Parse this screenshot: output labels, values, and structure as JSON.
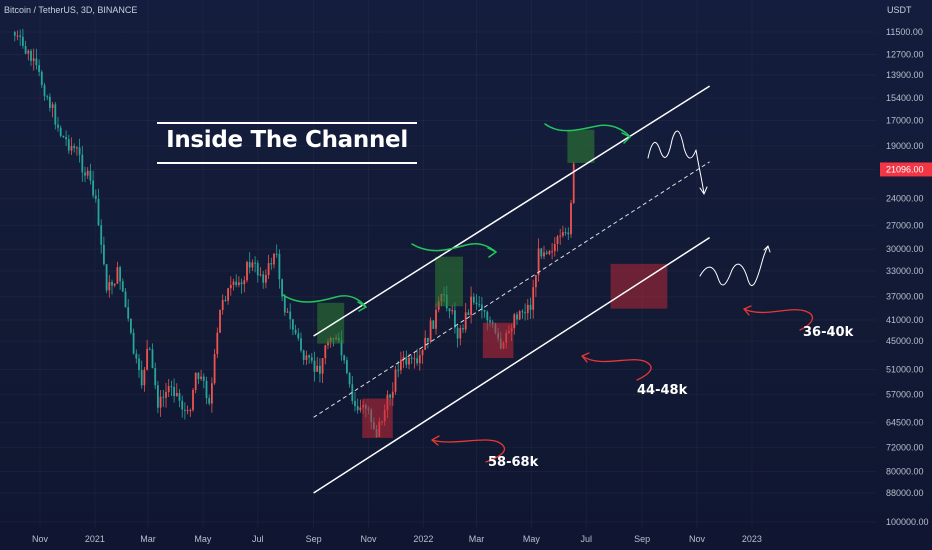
{
  "header": {
    "symbol": "Bitcoin / TetherUS, 3D, BINANCE",
    "currency": "USDT"
  },
  "overlay_title": "Inside The Channel",
  "annotations": [
    "58-68k",
    "44-48k",
    "36-40k"
  ],
  "colors": {
    "background": "#131a33",
    "candle_up": "#26a69a",
    "candle_down": "#ef5350",
    "current_price_tag": "#f23645",
    "zone_green": "#2e7d32",
    "zone_red": "#c62836",
    "arrow_green": "#22c55e",
    "arrow_red": "#e53935"
  },
  "chart_data": {
    "type": "candlestick",
    "y_scale": "log-inverted",
    "y_ticks": [
      11500,
      12700,
      13900,
      15400,
      17000,
      19000,
      21096,
      24000,
      27000,
      30000,
      33000,
      37000,
      41000,
      45000,
      51000,
      57000,
      64500,
      72000,
      80000,
      88000,
      100000
    ],
    "y_tick_labels": [
      "11500.00",
      "12700.00",
      "13900.00",
      "15400.00",
      "17000.00",
      "19000.00",
      "21096.00",
      "24000.00",
      "27000.00",
      "30000.00",
      "33000.00",
      "37000.00",
      "41000.00",
      "45000.00",
      "51000.00",
      "57000.00",
      "64500.00",
      "72000.00",
      "80000.00",
      "88000.00",
      "100000.00"
    ],
    "current_price": 21096,
    "current_price_label": "21096.00",
    "x_tick_labels": [
      "Nov",
      "2021",
      "Mar",
      "May",
      "Jul",
      "Sep",
      "Nov",
      "2022",
      "Mar",
      "May",
      "Jul",
      "Sep",
      "Nov",
      "2023"
    ],
    "x_tick_dates": [
      "2020-11-01",
      "2021-01-01",
      "2021-03-01",
      "2021-05-01",
      "2021-07-01",
      "2021-09-01",
      "2021-11-01",
      "2022-01-01",
      "2022-03-01",
      "2022-05-01",
      "2022-07-01",
      "2022-09-01",
      "2022-11-01",
      "2023-01-01"
    ],
    "price_path": [
      [
        "2020-10-01",
        11500
      ],
      [
        "2020-10-20",
        12800
      ],
      [
        "2020-11-05",
        14600
      ],
      [
        "2020-11-25",
        18200
      ],
      [
        "2020-12-12",
        19500
      ],
      [
        "2020-12-31",
        23500
      ],
      [
        "2021-01-15",
        36000
      ],
      [
        "2021-01-28",
        33000
      ],
      [
        "2021-02-10",
        44500
      ],
      [
        "2021-02-21",
        55000
      ],
      [
        "2021-03-01",
        46000
      ],
      [
        "2021-03-13",
        60000
      ],
      [
        "2021-03-27",
        54000
      ],
      [
        "2021-04-14",
        63000
      ],
      [
        "2021-04-24",
        50500
      ],
      [
        "2021-05-09",
        58500
      ],
      [
        "2021-05-22",
        37000
      ],
      [
        "2021-06-07",
        35500
      ],
      [
        "2021-06-22",
        32000
      ],
      [
        "2021-07-10",
        34000
      ],
      [
        "2021-07-20",
        30000
      ],
      [
        "2021-08-01",
        39500
      ],
      [
        "2021-08-13",
        44000
      ],
      [
        "2021-08-23",
        49500
      ],
      [
        "2021-09-06",
        51500
      ],
      [
        "2021-09-20",
        43000
      ],
      [
        "2021-10-01",
        47000
      ],
      [
        "2021-10-15",
        60000
      ],
      [
        "2021-11-01",
        61000
      ],
      [
        "2021-11-10",
        67500
      ],
      [
        "2021-11-25",
        57000
      ],
      [
        "2021-12-05",
        49000
      ],
      [
        "2021-12-25",
        50500
      ],
      [
        "2022-01-10",
        42000
      ],
      [
        "2022-01-24",
        36500
      ],
      [
        "2022-02-10",
        44000
      ],
      [
        "2022-02-24",
        37000
      ],
      [
        "2022-03-10",
        39000
      ],
      [
        "2022-03-29",
        47500
      ],
      [
        "2022-04-12",
        40000
      ],
      [
        "2022-04-30",
        38500
      ],
      [
        "2022-05-10",
        30000
      ],
      [
        "2022-05-25",
        29500
      ],
      [
        "2022-06-10",
        28500
      ],
      [
        "2022-06-17",
        21096
      ]
    ]
  }
}
